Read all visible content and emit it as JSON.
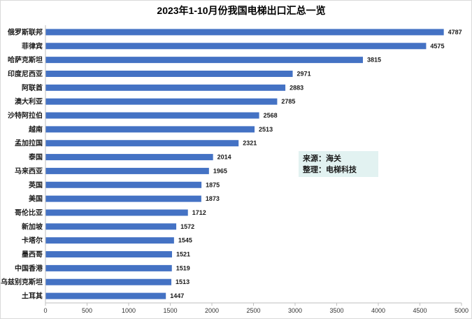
{
  "chart_data": {
    "type": "bar",
    "orientation": "horizontal",
    "title": "2023年1-10月份我国电梯出口汇总一览",
    "categories": [
      "俄罗斯联邦",
      "菲律宾",
      "哈萨克斯坦",
      "印度尼西亚",
      "阿联酋",
      "澳大利亚",
      "沙特阿拉伯",
      "越南",
      "孟加拉国",
      "泰国",
      "马来西亚",
      "英国",
      "美国",
      "哥伦比亚",
      "新加坡",
      "卡塔尔",
      "墨西哥",
      "中国香港",
      "乌兹别克斯坦",
      "土耳其"
    ],
    "values": [
      4787,
      4575,
      3815,
      2971,
      2883,
      2785,
      2568,
      2513,
      2321,
      2014,
      1965,
      1875,
      1873,
      1712,
      1572,
      1545,
      1521,
      1519,
      1513,
      1447
    ],
    "xlim": [
      0,
      5000
    ],
    "xticks": [
      0,
      500,
      1000,
      1500,
      2000,
      2500,
      3000,
      3500,
      4000,
      4500,
      5000
    ],
    "bar_color": "#4472c4",
    "grid": false,
    "legend": "none",
    "annotation": {
      "line1": "来源：海关",
      "line2": "整理：电梯科技",
      "background": "#e2f2f1"
    }
  }
}
